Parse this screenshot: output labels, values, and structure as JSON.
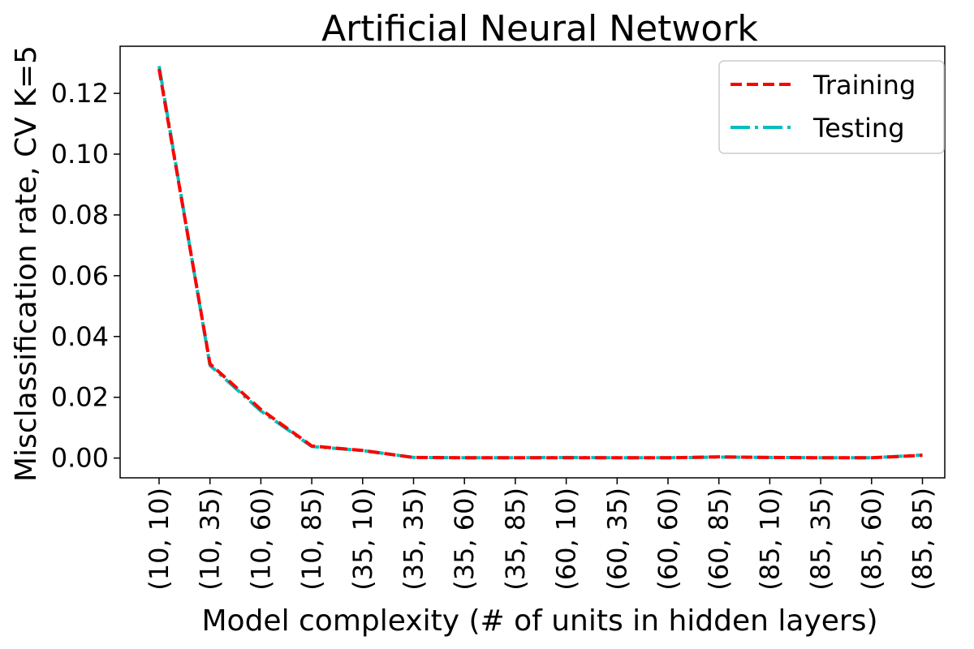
{
  "chart_data": {
    "type": "line",
    "title": "Artificial Neural Network",
    "xlabel": "Model complexity (# of units in hidden layers)",
    "ylabel": "Misclassification rate, CV K=5",
    "categories": [
      "(10, 10)",
      "(10, 35)",
      "(10, 60)",
      "(10, 85)",
      "(35, 10)",
      "(35, 35)",
      "(35, 60)",
      "(35, 85)",
      "(60, 10)",
      "(60, 35)",
      "(60, 60)",
      "(60, 85)",
      "(85, 10)",
      "(85, 35)",
      "(85, 60)",
      "(85, 85)"
    ],
    "ylim": [
      -0.0065,
      0.1355
    ],
    "yticks": [
      0.0,
      0.02,
      0.04,
      0.06,
      0.08,
      0.1,
      0.12
    ],
    "ytick_labels": [
      "0.00",
      "0.02",
      "0.04",
      "0.06",
      "0.08",
      "0.10",
      "0.12"
    ],
    "grid": false,
    "legend_position": "top-right",
    "series": [
      {
        "name": "Training",
        "color": "#ff0000",
        "style": "dashed",
        "values": [
          0.128,
          0.031,
          0.016,
          0.004,
          0.0025,
          0.0002,
          0.0001,
          0.0001,
          0.0001,
          0.0001,
          0.0001,
          0.0004,
          0.0002,
          0.0001,
          0.0001,
          0.0009
        ]
      },
      {
        "name": "Testing",
        "color": "#00bfbf",
        "style": "dashdot",
        "values": [
          0.129,
          0.0305,
          0.0155,
          0.0038,
          0.0025,
          0.0002,
          0.0001,
          0.0001,
          0.0002,
          0.0001,
          0.0001,
          0.0003,
          0.0002,
          0.0001,
          0.0001,
          0.001
        ]
      }
    ]
  }
}
